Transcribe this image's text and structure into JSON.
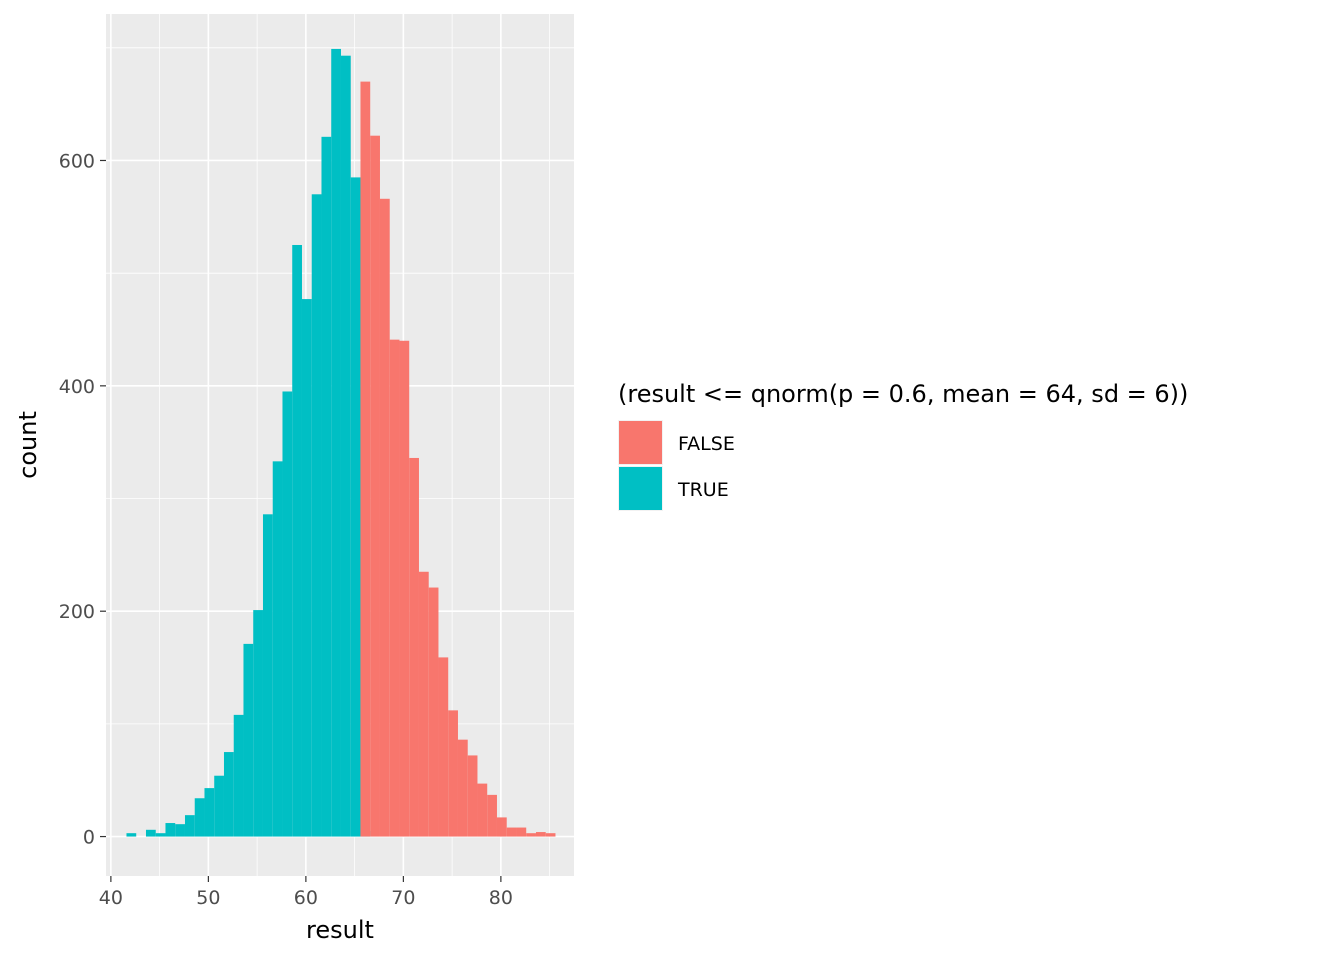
{
  "chart_data": {
    "type": "histogram",
    "xlabel": "result",
    "ylabel": "count",
    "xlim": [
      39.5,
      87.5
    ],
    "ylim": [
      -35,
      730
    ],
    "x_ticks": [
      40,
      50,
      60,
      70,
      80
    ],
    "y_ticks": [
      0,
      200,
      400,
      600
    ],
    "x_minor": [
      45,
      55,
      65,
      75,
      85
    ],
    "y_minor": [
      100,
      300,
      500,
      700
    ],
    "grid": true,
    "bin_width": 1,
    "legend": {
      "title": "(result <= qnorm(p = 0.6, mean = 64, sd = 6))",
      "position": "right",
      "entries": [
        {
          "label": "FALSE",
          "color": "#F8766D"
        },
        {
          "label": "TRUE",
          "color": "#00BFC4"
        }
      ]
    },
    "series": [
      {
        "name": "TRUE",
        "color": "#00BFC4",
        "bins": [
          {
            "x0": 41.6,
            "x1": 42.6,
            "count": 3
          },
          {
            "x0": 43.6,
            "x1": 44.6,
            "count": 6
          },
          {
            "x0": 44.6,
            "x1": 45.6,
            "count": 3
          },
          {
            "x0": 45.6,
            "x1": 46.6,
            "count": 12
          },
          {
            "x0": 46.6,
            "x1": 47.6,
            "count": 11
          },
          {
            "x0": 47.6,
            "x1": 48.6,
            "count": 19
          },
          {
            "x0": 48.6,
            "x1": 49.6,
            "count": 34
          },
          {
            "x0": 49.6,
            "x1": 50.6,
            "count": 43
          },
          {
            "x0": 50.6,
            "x1": 51.6,
            "count": 54
          },
          {
            "x0": 51.6,
            "x1": 52.6,
            "count": 75
          },
          {
            "x0": 52.6,
            "x1": 53.6,
            "count": 108
          },
          {
            "x0": 53.6,
            "x1": 54.6,
            "count": 171
          },
          {
            "x0": 54.6,
            "x1": 55.6,
            "count": 201
          },
          {
            "x0": 55.6,
            "x1": 56.6,
            "count": 286
          },
          {
            "x0": 56.6,
            "x1": 57.6,
            "count": 333
          },
          {
            "x0": 57.6,
            "x1": 58.6,
            "count": 395
          },
          {
            "x0": 58.6,
            "x1": 59.6,
            "count": 525
          },
          {
            "x0": 59.6,
            "x1": 60.6,
            "count": 477
          },
          {
            "x0": 60.6,
            "x1": 61.6,
            "count": 570
          },
          {
            "x0": 61.6,
            "x1": 62.6,
            "count": 621
          },
          {
            "x0": 62.6,
            "x1": 63.6,
            "count": 699
          },
          {
            "x0": 63.6,
            "x1": 64.6,
            "count": 693
          },
          {
            "x0": 64.6,
            "x1": 65.6,
            "count": 585
          },
          {
            "x0": 65.6,
            "x1": 66.6,
            "count": 5
          }
        ]
      },
      {
        "name": "FALSE",
        "color": "#F8766D",
        "bins": [
          {
            "x0": 65.6,
            "x1": 66.6,
            "count": 670
          },
          {
            "x0": 66.6,
            "x1": 67.6,
            "count": 622
          },
          {
            "x0": 67.6,
            "x1": 68.6,
            "count": 566
          },
          {
            "x0": 68.6,
            "x1": 69.6,
            "count": 441
          },
          {
            "x0": 69.6,
            "x1": 70.6,
            "count": 440
          },
          {
            "x0": 70.6,
            "x1": 71.6,
            "count": 336
          },
          {
            "x0": 71.6,
            "x1": 72.6,
            "count": 235
          },
          {
            "x0": 72.6,
            "x1": 73.6,
            "count": 221
          },
          {
            "x0": 73.6,
            "x1": 74.6,
            "count": 159
          },
          {
            "x0": 74.6,
            "x1": 75.6,
            "count": 112
          },
          {
            "x0": 75.6,
            "x1": 76.6,
            "count": 86
          },
          {
            "x0": 76.6,
            "x1": 77.6,
            "count": 72
          },
          {
            "x0": 77.6,
            "x1": 78.6,
            "count": 47
          },
          {
            "x0": 78.6,
            "x1": 79.6,
            "count": 37
          },
          {
            "x0": 79.6,
            "x1": 80.6,
            "count": 17
          },
          {
            "x0": 80.6,
            "x1": 81.6,
            "count": 8
          },
          {
            "x0": 81.6,
            "x1": 82.6,
            "count": 8
          },
          {
            "x0": 82.6,
            "x1": 83.6,
            "count": 3
          },
          {
            "x0": 83.6,
            "x1": 84.6,
            "count": 4
          },
          {
            "x0": 84.6,
            "x1": 85.6,
            "count": 3
          }
        ]
      }
    ]
  }
}
